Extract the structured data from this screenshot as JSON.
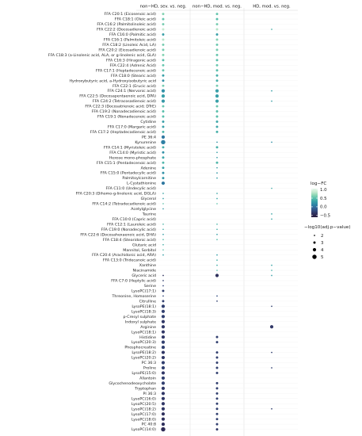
{
  "chart_data": {
    "type": "scatter",
    "columns": [
      "non−HD, sev. vs. neg.",
      "non−HD, mod. vs. neg.",
      "HD, mod. vs. neg."
    ],
    "rows": [
      {
        "label": "FFA C20:1 (Eicosenoic acid)",
        "values": [
          0.65,
          0.55,
          null
        ],
        "sizes": [
          3,
          3,
          null
        ]
      },
      {
        "label": "FFA C18:1 (Oleic acid)",
        "values": [
          0.55,
          0.5,
          null
        ],
        "sizes": [
          3,
          3,
          null
        ]
      },
      {
        "label": "FFA C16:2 (Palmitolinoleic acid)",
        "values": [
          0.6,
          0.6,
          null
        ],
        "sizes": [
          3,
          3,
          null
        ]
      },
      {
        "label": "FFA C22:2 (Docosadienoic acid)",
        "values": [
          0.85,
          0.8,
          0.4
        ],
        "sizes": [
          3,
          3,
          2
        ]
      },
      {
        "label": "FFA C16:0 (Palmitic acid)",
        "values": [
          0.3,
          0.3,
          null
        ],
        "sizes": [
          3,
          3,
          null
        ]
      },
      {
        "label": "FFA C16:1 (Palmitoleic acid)",
        "values": [
          0.8,
          0.65,
          null
        ],
        "sizes": [
          3,
          3,
          null
        ]
      },
      {
        "label": "FFA C18:2 (Linoleic Acid, LA)",
        "values": [
          0.6,
          0.55,
          null
        ],
        "sizes": [
          3,
          3,
          null
        ]
      },
      {
        "label": "FFA C20:2 (Eicosadienoic acid)",
        "values": [
          0.6,
          0.6,
          null
        ],
        "sizes": [
          3,
          3,
          null
        ]
      },
      {
        "label": "FFA C18:3 (a-Linolenic acid, ALA, or g-linolenic acid, GLA)",
        "values": [
          0.65,
          0.55,
          null
        ],
        "sizes": [
          3,
          3,
          null
        ]
      },
      {
        "label": "FFA C16:3 (Hiragonic acid)",
        "values": [
          0.5,
          0.5,
          null
        ],
        "sizes": [
          3,
          3,
          null
        ]
      },
      {
        "label": "FFA C22:4 (Adrenic Acid)",
        "values": [
          0.55,
          0.55,
          null
        ],
        "sizes": [
          3,
          3,
          null
        ]
      },
      {
        "label": "FFA C17:1 (Heptadecenoic acid)",
        "values": [
          0.55,
          0.5,
          null
        ],
        "sizes": [
          3,
          3,
          null
        ]
      },
      {
        "label": "FFA C18:0 (Stearic acid)",
        "values": [
          0.3,
          0.4,
          null
        ],
        "sizes": [
          3,
          3,
          null
        ]
      },
      {
        "label": "Hydroxybutyric acid, a-Hydroxyisobutyric acid",
        "values": [
          0.2,
          0.4,
          null
        ],
        "sizes": [
          3,
          3,
          null
        ]
      },
      {
        "label": "FFA C22:1 (Erucic acid)",
        "values": [
          0.6,
          0.6,
          null
        ],
        "sizes": [
          3,
          3,
          null
        ]
      },
      {
        "label": "FFA C24:1 (Nervonic acid)",
        "values": [
          0.2,
          0.3,
          0.3
        ],
        "sizes": [
          4,
          4,
          2
        ]
      },
      {
        "label": "FFA C22:5 (Docosapentaenoic acid, DPA)",
        "values": [
          0.3,
          0.3,
          null
        ],
        "sizes": [
          4,
          4,
          null
        ]
      },
      {
        "label": "FFA C24:2 (Tetracosadienoic acid)",
        "values": [
          0.25,
          0.3,
          0.3
        ],
        "sizes": [
          4,
          4,
          2
        ]
      },
      {
        "label": "FFA C22:3 (Docosatrienoic acid; DTrE)",
        "values": [
          0.55,
          0.55,
          null
        ],
        "sizes": [
          3,
          3,
          null
        ]
      },
      {
        "label": "FFA C19:2 (Nonadecadienoic acid)",
        "values": [
          0.5,
          0.5,
          null
        ],
        "sizes": [
          3,
          3,
          null
        ]
      },
      {
        "label": "FFA C19:1 (Nonadecenoic acid)",
        "values": [
          0.5,
          0.5,
          null
        ],
        "sizes": [
          3,
          3,
          null
        ]
      },
      {
        "label": "Cytidine",
        "values": [
          0.3,
          0.35,
          null
        ],
        "sizes": [
          3,
          3,
          null
        ]
      },
      {
        "label": "FFA C17:0 (Margaric acid)",
        "values": [
          0.3,
          0.35,
          null
        ],
        "sizes": [
          3,
          3,
          null
        ]
      },
      {
        "label": "FFA C17:2 (Heptadecadienoic acid)",
        "values": [
          0.45,
          0.4,
          null
        ],
        "sizes": [
          3,
          3,
          null
        ]
      },
      {
        "label": "PE 36:4",
        "values": [
          0.05,
          null,
          null
        ],
        "sizes": [
          4,
          null,
          null
        ]
      },
      {
        "label": "Kynurenine",
        "values": [
          0.1,
          0.2,
          0.2
        ],
        "sizes": [
          5,
          2,
          2
        ]
      },
      {
        "label": "FFA C14:1 (Myristoleic acid)",
        "values": [
          0.4,
          0.4,
          null
        ],
        "sizes": [
          3,
          3,
          null
        ]
      },
      {
        "label": "FFA C14:0 (Myristic acid)",
        "values": [
          0.2,
          0.3,
          null
        ],
        "sizes": [
          3,
          2,
          null
        ]
      },
      {
        "label": "Hexose mono-phosphate",
        "values": [
          0.35,
          0.3,
          null
        ],
        "sizes": [
          3,
          2,
          null
        ]
      },
      {
        "label": "FFA C15:1 (Pentadecenoic acid)",
        "values": [
          0.45,
          0.45,
          null
        ],
        "sizes": [
          3,
          3,
          null
        ]
      },
      {
        "label": "Adenine",
        "values": [
          0.3,
          0.3,
          null
        ],
        "sizes": [
          3,
          2,
          null
        ]
      },
      {
        "label": "FFA C15:0 (Pentadecylic acid)",
        "values": [
          0.2,
          0.25,
          null
        ],
        "sizes": [
          3,
          2,
          null
        ]
      },
      {
        "label": "Palmitoylcarnitine",
        "values": [
          0.25,
          0.3,
          null
        ],
        "sizes": [
          3,
          2,
          null
        ]
      },
      {
        "label": "L-Cystathionine",
        "values": [
          0.05,
          null,
          null
        ],
        "sizes": [
          4,
          null,
          null
        ]
      },
      {
        "label": "FFA C11:0 (Undecylic acid)",
        "values": [
          null,
          null,
          0.4
        ],
        "sizes": [
          null,
          null,
          2
        ]
      },
      {
        "label": "FFA C20:3 (Dihomo-g-linolenic acid, DGLA)",
        "values": [
          0.35,
          0.35,
          null
        ],
        "sizes": [
          2,
          2,
          null
        ]
      },
      {
        "label": "Glycerol",
        "values": [
          0.3,
          0.35,
          null
        ],
        "sizes": [
          2,
          2,
          null
        ]
      },
      {
        "label": "FFA C14:2 (Tetradecadienoic acid)",
        "values": [
          0.55,
          0.55,
          null
        ],
        "sizes": [
          2,
          2,
          null
        ]
      },
      {
        "label": "Acetylglycine",
        "values": [
          0.25,
          null,
          null
        ],
        "sizes": [
          2,
          null,
          null
        ]
      },
      {
        "label": "Taurine",
        "values": [
          null,
          null,
          0.35
        ],
        "sizes": [
          null,
          null,
          2
        ]
      },
      {
        "label": "FFA C10:0 (Capric acid)",
        "values": [
          null,
          null,
          0.35
        ],
        "sizes": [
          null,
          null,
          2
        ]
      },
      {
        "label": "FFA C12:1 (Lauroleic acid)",
        "values": [
          0.45,
          0.45,
          null
        ],
        "sizes": [
          2,
          2,
          null
        ]
      },
      {
        "label": "FFA C19:0 (Nonadecylic acid)",
        "values": [
          0.4,
          0.4,
          null
        ],
        "sizes": [
          2,
          2,
          null
        ]
      },
      {
        "label": "FFA C22:6 (Docosahexaenoic acid, DHA)",
        "values": [
          0.3,
          0.3,
          null
        ],
        "sizes": [
          2,
          2,
          null
        ]
      },
      {
        "label": "FFA C18:4 (Stearidonic acid)",
        "values": [
          0.5,
          0.5,
          null
        ],
        "sizes": [
          2,
          2,
          null
        ]
      },
      {
        "label": "Glutaric acid",
        "values": [
          0.4,
          null,
          null
        ],
        "sizes": [
          2,
          null,
          null
        ]
      },
      {
        "label": "Mannitol, Sorbitol",
        "values": [
          0.55,
          null,
          null
        ],
        "sizes": [
          2,
          null,
          null
        ]
      },
      {
        "label": "FFA C20:4 (Arachidonic acid, ARA)",
        "values": [
          0.3,
          0.3,
          null
        ],
        "sizes": [
          2,
          2,
          null
        ]
      },
      {
        "label": "FFA C13:0 (Tridecanoic acid)",
        "values": [
          null,
          0.4,
          null
        ],
        "sizes": [
          null,
          2,
          null
        ]
      },
      {
        "label": "Xanthine",
        "values": [
          null,
          0.4,
          0.35
        ],
        "sizes": [
          null,
          2,
          2
        ]
      },
      {
        "label": "Niacinamide",
        "values": [
          null,
          0.5,
          0.4
        ],
        "sizes": [
          null,
          2,
          2
        ]
      },
      {
        "label": "Glyceric acid",
        "values": [
          -0.4,
          -0.4,
          0.3
        ],
        "sizes": [
          2,
          4,
          2
        ]
      },
      {
        "label": "FFA C7:0 (Heptylic acid)",
        "values": [
          -0.3,
          null,
          null
        ],
        "sizes": [
          2,
          null,
          null
        ]
      },
      {
        "label": "Serine",
        "values": [
          -0.25,
          null,
          null
        ],
        "sizes": [
          2,
          null,
          null
        ]
      },
      {
        "label": "LysoPC(17:1)",
        "values": [
          -0.3,
          null,
          null
        ],
        "sizes": [
          3,
          null,
          null
        ]
      },
      {
        "label": "Threonine, Homoserine",
        "values": [
          -0.25,
          -0.2,
          null
        ],
        "sizes": [
          2,
          2,
          null
        ]
      },
      {
        "label": "Citrulline",
        "values": [
          -0.3,
          -0.3,
          null
        ],
        "sizes": [
          3,
          2,
          null
        ]
      },
      {
        "label": "LysoPE(18:1)",
        "values": [
          -0.3,
          null,
          -0.3
        ],
        "sizes": [
          4,
          null,
          2
        ]
      },
      {
        "label": "LysoPC(18:3)",
        "values": [
          -0.3,
          null,
          null
        ],
        "sizes": [
          4,
          null,
          null
        ]
      },
      {
        "label": "p-Cresyl sulphate",
        "values": [
          -0.3,
          null,
          null
        ],
        "sizes": [
          4,
          null,
          null
        ]
      },
      {
        "label": "Indoxyl sulphate",
        "values": [
          -0.35,
          null,
          null
        ],
        "sizes": [
          4,
          null,
          null
        ]
      },
      {
        "label": "Arginine",
        "values": [
          -0.35,
          null,
          -0.35
        ],
        "sizes": [
          4,
          null,
          4
        ]
      },
      {
        "label": "LysoPC(18:1)",
        "values": [
          -0.35,
          null,
          null
        ],
        "sizes": [
          4,
          null,
          null
        ]
      },
      {
        "label": "Histidine",
        "values": [
          -0.35,
          -0.3,
          null
        ],
        "sizes": [
          4,
          3,
          null
        ]
      },
      {
        "label": "LysoPC(20:3)",
        "values": [
          -0.3,
          -0.3,
          null
        ],
        "sizes": [
          4,
          3,
          null
        ]
      },
      {
        "label": "Phosphocreatine",
        "values": [
          -0.3,
          null,
          null
        ],
        "sizes": [
          4,
          null,
          null
        ]
      },
      {
        "label": "LysoPE(18:2)",
        "values": [
          -0.35,
          -0.3,
          -0.3
        ],
        "sizes": [
          4,
          3,
          2
        ]
      },
      {
        "label": "LysoPC(20:2)",
        "values": [
          -0.35,
          -0.3,
          null
        ],
        "sizes": [
          4,
          3,
          null
        ]
      },
      {
        "label": "PC 36:3",
        "values": [
          -0.3,
          -0.3,
          null
        ],
        "sizes": [
          4,
          3,
          null
        ]
      },
      {
        "label": "Proline",
        "values": [
          -0.3,
          -0.3,
          -0.3
        ],
        "sizes": [
          4,
          3,
          2
        ]
      },
      {
        "label": "LysoPE(15:0)",
        "values": [
          -0.35,
          -0.3,
          null
        ],
        "sizes": [
          4,
          3,
          null
        ]
      },
      {
        "label": "Allantoin",
        "values": [
          -0.3,
          null,
          null
        ],
        "sizes": [
          4,
          null,
          null
        ]
      },
      {
        "label": "Glycochenodeoxycholate",
        "values": [
          -0.3,
          -0.3,
          null
        ],
        "sizes": [
          4,
          3,
          null
        ]
      },
      {
        "label": "Tryptophan",
        "values": [
          -0.35,
          -0.3,
          null
        ],
        "sizes": [
          4,
          3,
          null
        ]
      },
      {
        "label": "PI 36:3",
        "values": [
          -0.35,
          -0.3,
          null
        ],
        "sizes": [
          4,
          3,
          null
        ]
      },
      {
        "label": "LysoPC(16:0)",
        "values": [
          -0.35,
          -0.3,
          null
        ],
        "sizes": [
          4,
          3,
          null
        ]
      },
      {
        "label": "LysoPC(20:5)",
        "values": [
          -0.35,
          -0.3,
          null
        ],
        "sizes": [
          4,
          3,
          null
        ]
      },
      {
        "label": "LysoPC(18:2)",
        "values": [
          -0.35,
          -0.3,
          -0.3
        ],
        "sizes": [
          4,
          3,
          2
        ]
      },
      {
        "label": "LysoPC(17:0)",
        "values": [
          -0.4,
          -0.3,
          null
        ],
        "sizes": [
          4,
          3,
          null
        ]
      },
      {
        "label": "LysoPC(18:0)",
        "values": [
          -0.4,
          -0.3,
          null
        ],
        "sizes": [
          4,
          3,
          null
        ]
      },
      {
        "label": "PC 40:8",
        "values": [
          -0.4,
          -0.3,
          null
        ],
        "sizes": [
          4,
          3,
          null
        ]
      },
      {
        "label": "LysoPC(14:0)",
        "values": [
          -0.45,
          -0.35,
          null
        ],
        "sizes": [
          5,
          3,
          null
        ]
      }
    ],
    "color_legend": {
      "title": "log−FC",
      "ticks": [
        "1.0",
        "0.5",
        "0.0",
        "−0.5"
      ],
      "tick_values": [
        1.0,
        0.5,
        0.0,
        -0.5
      ],
      "range": [
        -0.6,
        1.05
      ],
      "colors": [
        "#251a3c",
        "#2f2e5a",
        "#344a7d",
        "#33679a",
        "#2e86a6",
        "#3aa3a8",
        "#58bfab",
        "#8ed7b5",
        "#c9ebd1",
        "#e2f5e8"
      ]
    },
    "size_legend": {
      "title": "−log10(adj.p−value)",
      "labels": [
        "2",
        "3",
        "4",
        "5"
      ],
      "values": [
        2,
        3,
        4,
        5
      ]
    }
  }
}
